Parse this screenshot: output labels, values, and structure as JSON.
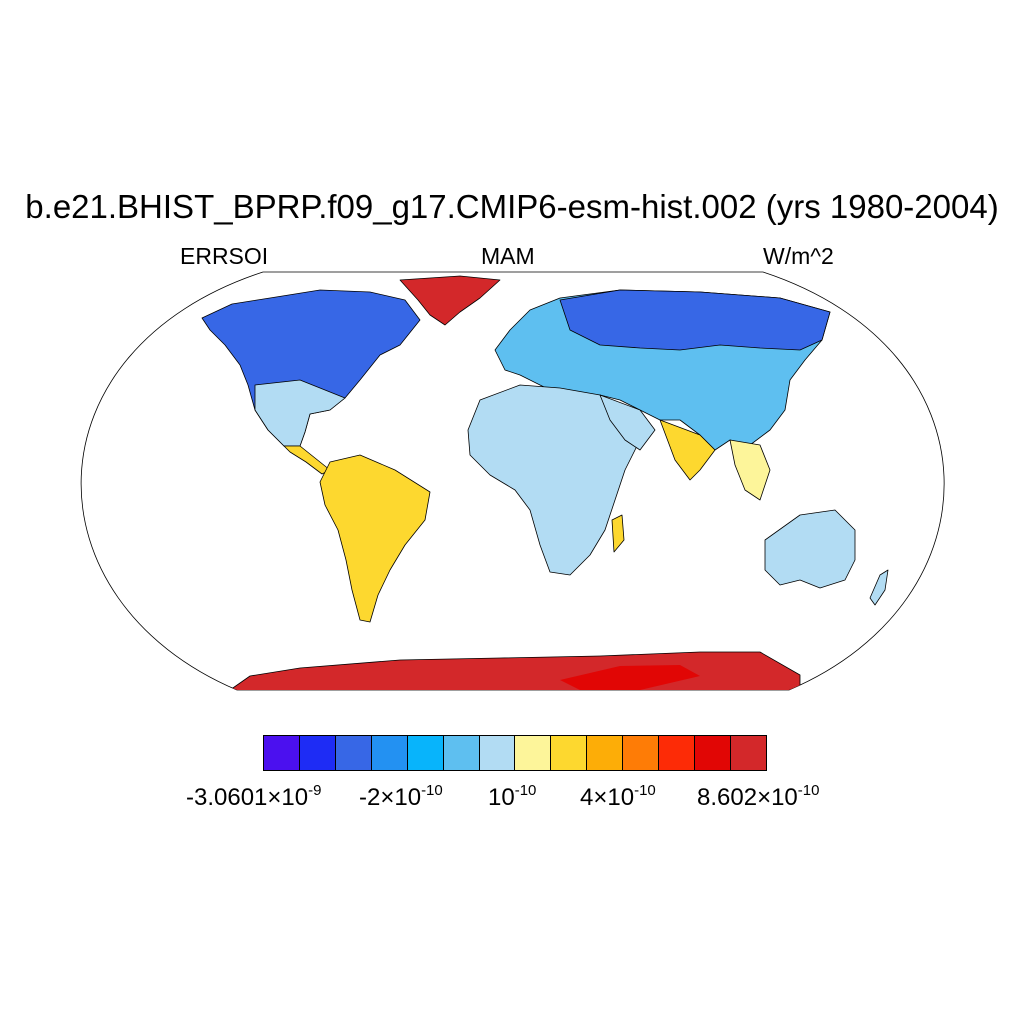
{
  "title": "b.e21.BHIST_BPRP.f09_g17.CMIP6-esm-hist.002 (yrs 1980-2004)",
  "subtitle_left": "ERRSOI",
  "subtitle_center": "MAM",
  "subtitle_right": "W/m^2",
  "colorbar": {
    "colors": [
      "#4b10ef",
      "#1e2cf5",
      "#3767e6",
      "#2391f2",
      "#08b4fb",
      "#5ebff0",
      "#b2dcf3",
      "#fdf59a",
      "#fdd82f",
      "#fdad07",
      "#fe7c06",
      "#fd2b06",
      "#e10605",
      "#d3282a"
    ],
    "labels": [
      {
        "mantissa": "-3.0601",
        "times": "×",
        "base": "10",
        "exp": "-9"
      },
      {
        "mantissa": "-2",
        "times": "×",
        "base": "10",
        "exp": "-10"
      },
      {
        "mantissa": "",
        "times": "",
        "base": "10",
        "exp": "-10"
      },
      {
        "mantissa": "4",
        "times": "×",
        "base": "10",
        "exp": "-10"
      },
      {
        "mantissa": "8.602",
        "times": "×",
        "base": "10",
        "exp": "-10"
      }
    ]
  },
  "map": {
    "projection": "Robinson",
    "ocean_color": "#ffffff",
    "colors": {
      "antarctica": "#d3282a",
      "antarctica_core": "#e10605",
      "greenland": "#d3282a",
      "high_lat": "#3767e6",
      "very_high_lat": "#4b10ef",
      "mid_lat": "#5ebff0",
      "land_light": "#b2dcf3",
      "land_yellow": "#fdd82f",
      "land_pale": "#fdf59a"
    }
  }
}
